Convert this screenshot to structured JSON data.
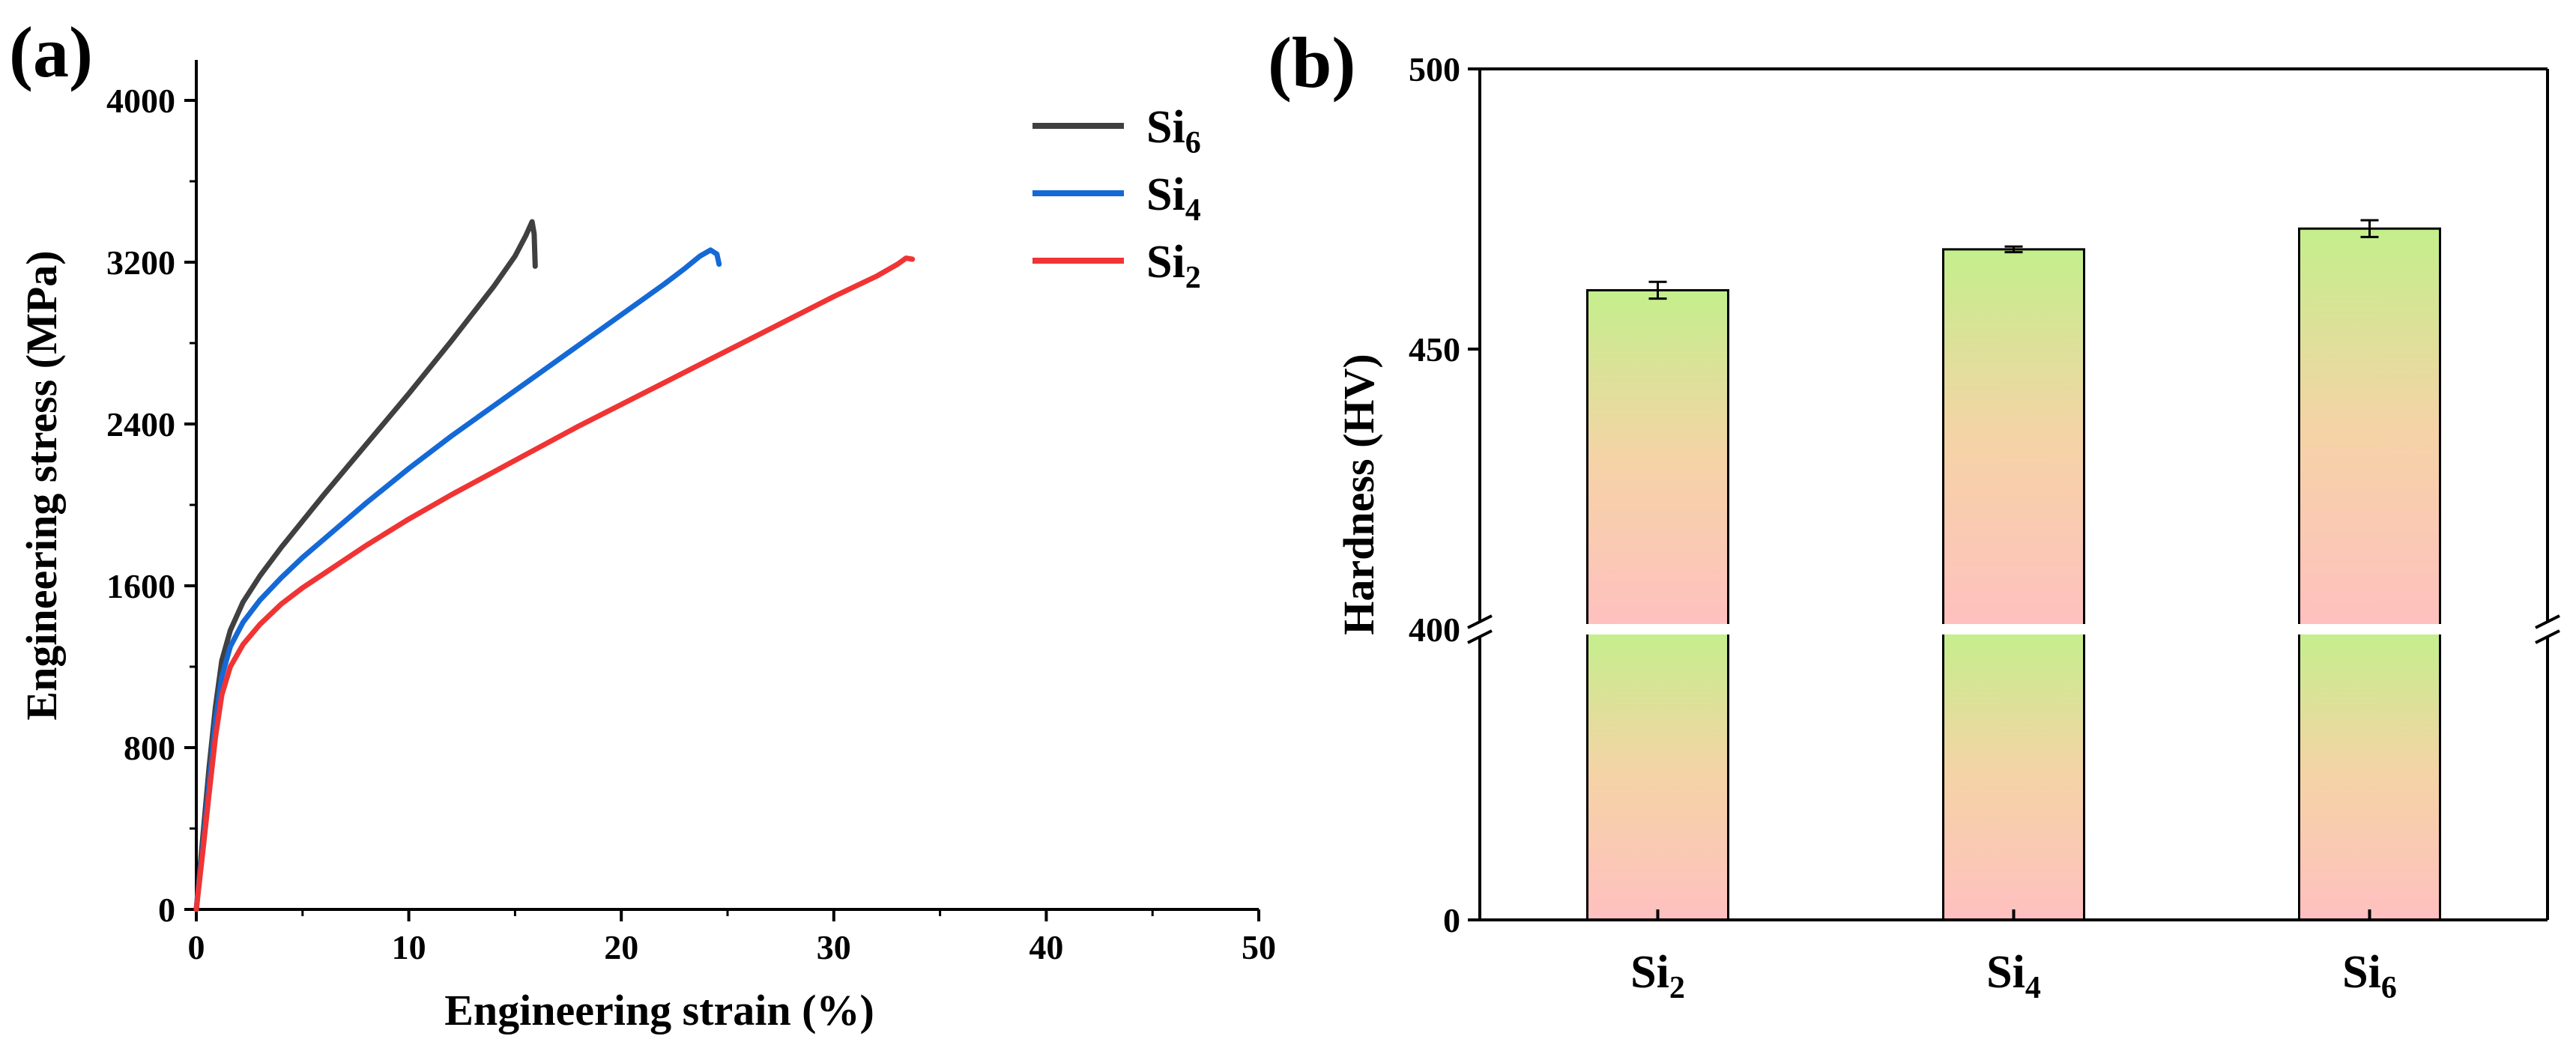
{
  "chart_data": [
    {
      "panel": "(a)",
      "type": "line",
      "xlabel": "Engineering strain (%)",
      "ylabel": "Engineering stress (MPa)",
      "xlim": [
        0,
        50
      ],
      "ylim": [
        0,
        4200
      ],
      "xticks": [
        0,
        10,
        20,
        30,
        40,
        50
      ],
      "yticks": [
        0,
        800,
        1600,
        2400,
        3200,
        4000
      ],
      "legend_position": "top-right",
      "series": [
        {
          "name": "Si6",
          "base": "Si",
          "sub": "6",
          "color": "#404040",
          "x": [
            0,
            0.3,
            0.6,
            0.9,
            1.2,
            1.6,
            2.2,
            3,
            4,
            5,
            6,
            8,
            10,
            12,
            14,
            15,
            15.5,
            15.8,
            15.9,
            15.95
          ],
          "y": [
            0,
            350,
            700,
            1000,
            1230,
            1380,
            1520,
            1650,
            1790,
            1920,
            2050,
            2300,
            2550,
            2810,
            3080,
            3230,
            3330,
            3400,
            3340,
            3180
          ]
        },
        {
          "name": "Si4",
          "base": "Si",
          "sub": "4",
          "color": "#1469d6",
          "x": [
            0,
            0.3,
            0.6,
            0.9,
            1.2,
            1.6,
            2.2,
            3,
            4,
            5,
            6,
            8,
            10,
            12,
            14,
            16,
            18,
            20,
            22,
            23,
            23.7,
            24.2,
            24.5,
            24.6
          ],
          "y": [
            0,
            300,
            620,
            930,
            1150,
            1300,
            1420,
            1530,
            1640,
            1740,
            1830,
            2010,
            2180,
            2340,
            2490,
            2640,
            2790,
            2940,
            3090,
            3170,
            3230,
            3260,
            3240,
            3190
          ]
        },
        {
          "name": "Si2",
          "base": "Si",
          "sub": "2",
          "color": "#f03434",
          "x": [
            0,
            0.3,
            0.6,
            0.9,
            1.2,
            1.6,
            2.2,
            3,
            4,
            5,
            6,
            8,
            10,
            12,
            15,
            18,
            21,
            24,
            27,
            30,
            32,
            33,
            33.4,
            33.7
          ],
          "y": [
            0,
            280,
            570,
            850,
            1060,
            1200,
            1310,
            1410,
            1510,
            1590,
            1660,
            1800,
            1930,
            2050,
            2220,
            2390,
            2550,
            2710,
            2870,
            3030,
            3130,
            3190,
            3220,
            3215
          ]
        }
      ]
    },
    {
      "panel": "(b)",
      "type": "bar",
      "ylabel": "Hardness (HV)",
      "axis_break": true,
      "lower_range": [
        0,
        400
      ],
      "upper_range": [
        400,
        500
      ],
      "yticks_labels": [
        "0",
        "400",
        "450",
        "500"
      ],
      "categories": [
        {
          "base": "Si",
          "sub": "2"
        },
        {
          "base": "Si",
          "sub": "4"
        },
        {
          "base": "Si",
          "sub": "6"
        }
      ],
      "values": [
        460.5,
        467.8,
        471.5
      ],
      "errors": [
        1.5,
        0.5,
        1.5
      ],
      "bar_gradient": {
        "top": "#c4ef8c",
        "bottom": "#ffc0c0"
      },
      "break_color": "#ffffff"
    }
  ],
  "labels": {
    "panel_a": "(a)",
    "panel_b": "(b)"
  }
}
